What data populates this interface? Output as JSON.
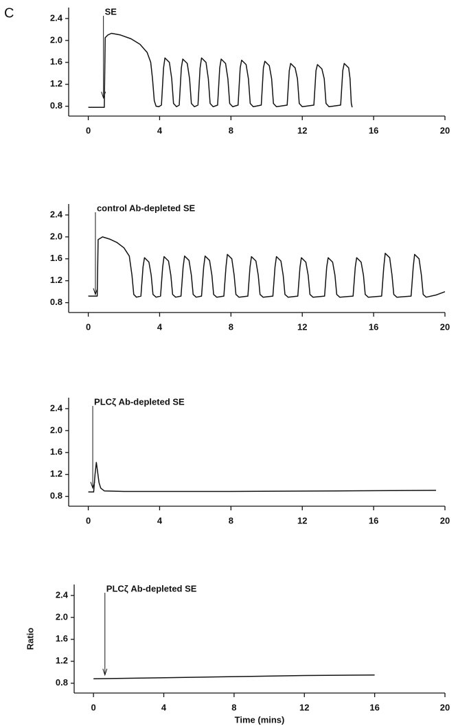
{
  "panel_label": "C",
  "chart_data": [
    {
      "type": "line",
      "annotation": {
        "text": "SE",
        "x": 0.85
      },
      "color": "#111111",
      "xlim": [
        -1.1,
        20
      ],
      "xticks": [
        0,
        4,
        8,
        12,
        16,
        20
      ],
      "ylim": [
        0.62,
        2.6
      ],
      "yticks": [
        0.8,
        1.2,
        1.6,
        {
          "value": 2,
          "label": "2.0"
        },
        2.4
      ],
      "x": [
        0,
        0.9,
        0.95,
        1.1,
        1.3,
        1.8,
        2.4,
        2.9,
        3.3,
        3.5,
        3.6,
        3.7,
        3.8,
        3.95,
        4.1,
        4.22,
        4.3,
        4.55,
        4.68,
        4.78,
        4.95,
        5.1,
        5.22,
        5.3,
        5.55,
        5.68,
        5.78,
        5.95,
        6.15,
        6.27,
        6.35,
        6.6,
        6.73,
        6.83,
        7.0,
        7.25,
        7.37,
        7.45,
        7.7,
        7.83,
        7.93,
        8.1,
        8.4,
        8.52,
        8.6,
        8.85,
        8.98,
        9.08,
        9.25,
        9.7,
        9.82,
        9.9,
        10.15,
        10.28,
        10.38,
        10.55,
        11.15,
        11.27,
        11.35,
        11.6,
        11.73,
        11.83,
        12.0,
        12.65,
        12.77,
        12.85,
        13.1,
        13.23,
        13.33,
        13.5,
        14.15,
        14.27,
        14.35,
        14.6,
        14.68,
        14.75,
        14.8
      ],
      "values": [
        0.78,
        0.78,
        2.05,
        2.1,
        2.13,
        2.1,
        2.03,
        1.93,
        1.78,
        1.6,
        1.3,
        0.9,
        0.8,
        0.79,
        0.82,
        1.5,
        1.68,
        1.6,
        1.3,
        0.85,
        0.79,
        0.82,
        1.5,
        1.66,
        1.58,
        1.3,
        0.85,
        0.79,
        0.82,
        1.5,
        1.68,
        1.6,
        1.3,
        0.85,
        0.79,
        0.82,
        1.5,
        1.66,
        1.58,
        1.3,
        0.85,
        0.79,
        0.82,
        1.5,
        1.64,
        1.56,
        1.3,
        0.85,
        0.79,
        0.82,
        1.5,
        1.62,
        1.54,
        1.3,
        0.85,
        0.79,
        0.82,
        1.45,
        1.58,
        1.5,
        1.3,
        0.85,
        0.79,
        0.82,
        1.45,
        1.56,
        1.48,
        1.3,
        0.85,
        0.79,
        0.82,
        1.45,
        1.58,
        1.5,
        1.3,
        0.85,
        0.78
      ]
    },
    {
      "type": "line",
      "annotation": {
        "text": "control Ab-depleted SE",
        "x": 0.4
      },
      "color": "#111111",
      "xlim": [
        -1.1,
        20
      ],
      "xticks": [
        0,
        4,
        8,
        12,
        16,
        20
      ],
      "ylim": [
        0.62,
        2.6
      ],
      "yticks": [
        0.8,
        1.2,
        1.6,
        {
          "value": 2,
          "label": "2.0"
        },
        2.4
      ],
      "x": [
        0,
        0.5,
        0.55,
        0.8,
        1.2,
        1.6,
        2.0,
        2.3,
        2.45,
        2.55,
        2.7,
        2.95,
        3.07,
        3.15,
        3.4,
        3.53,
        3.63,
        3.8,
        4.05,
        4.17,
        4.25,
        4.5,
        4.63,
        4.73,
        4.9,
        5.2,
        5.32,
        5.4,
        5.65,
        5.78,
        5.88,
        6.05,
        6.35,
        6.47,
        6.55,
        6.8,
        6.93,
        7.03,
        7.2,
        7.6,
        7.72,
        7.8,
        8.05,
        8.18,
        8.28,
        8.45,
        8.95,
        9.07,
        9.15,
        9.4,
        9.53,
        9.63,
        9.8,
        10.35,
        10.47,
        10.55,
        10.8,
        10.93,
        11.03,
        11.2,
        11.75,
        11.87,
        11.95,
        12.2,
        12.33,
        12.43,
        12.6,
        13.25,
        13.37,
        13.45,
        13.7,
        13.83,
        13.93,
        14.1,
        14.85,
        14.97,
        15.05,
        15.3,
        15.43,
        15.53,
        15.7,
        16.45,
        16.57,
        16.65,
        16.9,
        17.03,
        17.13,
        17.3,
        18.1,
        18.22,
        18.3,
        18.55,
        18.68,
        18.78,
        18.95,
        19.5,
        20
      ],
      "values": [
        0.92,
        0.92,
        1.95,
        2.0,
        1.96,
        1.9,
        1.8,
        1.65,
        1.3,
        0.95,
        0.9,
        0.92,
        1.45,
        1.62,
        1.54,
        1.3,
        0.95,
        0.9,
        0.92,
        1.45,
        1.64,
        1.56,
        1.3,
        0.95,
        0.9,
        0.92,
        1.45,
        1.65,
        1.57,
        1.3,
        0.95,
        0.9,
        0.92,
        1.45,
        1.65,
        1.57,
        1.3,
        0.95,
        0.9,
        0.92,
        1.45,
        1.68,
        1.6,
        1.3,
        0.95,
        0.9,
        0.92,
        1.45,
        1.64,
        1.56,
        1.3,
        0.95,
        0.9,
        0.92,
        1.45,
        1.64,
        1.56,
        1.3,
        0.95,
        0.9,
        0.92,
        1.45,
        1.62,
        1.54,
        1.3,
        0.95,
        0.9,
        0.92,
        1.45,
        1.62,
        1.54,
        1.3,
        0.95,
        0.9,
        0.92,
        1.45,
        1.62,
        1.54,
        1.3,
        0.95,
        0.9,
        0.92,
        1.45,
        1.7,
        1.62,
        1.3,
        0.95,
        0.9,
        0.92,
        1.45,
        1.68,
        1.6,
        1.3,
        0.95,
        0.9,
        0.94,
        1.0
      ]
    },
    {
      "type": "line",
      "annotation": {
        "text": "PLCζ Ab-depleted SE",
        "x": 0.25
      },
      "color": "#111111",
      "xlim": [
        -1.1,
        20
      ],
      "xticks": [
        0,
        4,
        8,
        12,
        16,
        20
      ],
      "ylim": [
        0.62,
        2.6
      ],
      "yticks": [
        0.8,
        1.2,
        1.6,
        {
          "value": 2,
          "label": "2.0"
        },
        2.4
      ],
      "x": [
        0,
        0.3,
        0.38,
        0.45,
        0.52,
        0.6,
        0.7,
        0.9,
        2,
        8,
        14,
        19.5
      ],
      "values": [
        0.88,
        0.88,
        1.2,
        1.42,
        1.25,
        1.05,
        0.95,
        0.9,
        0.89,
        0.89,
        0.9,
        0.91
      ]
    },
    {
      "type": "line",
      "annotation": {
        "text": "PLCζ Ab-depleted SE",
        "x": 0.65
      },
      "color": "#111111",
      "xlabel": "Time (mins)",
      "ylabel": "Ratio",
      "xlim": [
        -1.1,
        20
      ],
      "xticks": [
        0,
        4,
        8,
        12,
        16,
        20
      ],
      "ylim": [
        0.62,
        2.6
      ],
      "yticks": [
        0.8,
        1.2,
        1.6,
        {
          "value": 2,
          "label": "2.0"
        },
        2.4
      ],
      "x": [
        0,
        4,
        8,
        12,
        16
      ],
      "values": [
        0.88,
        0.9,
        0.92,
        0.94,
        0.95
      ]
    }
  ]
}
